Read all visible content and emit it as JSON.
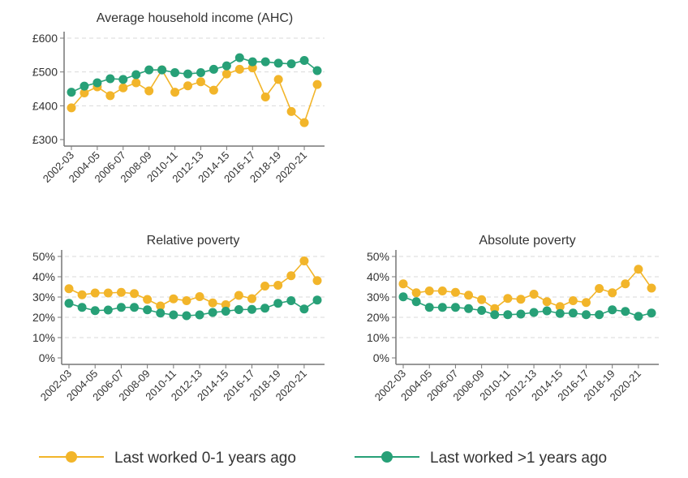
{
  "colors": {
    "recent": "#F2B52A",
    "older": "#27A077",
    "grid": "#d9d9d9",
    "axis": "#777777"
  },
  "legend": [
    {
      "label": "Last worked 0-1 years ago",
      "color_key": "recent"
    },
    {
      "label": "Last worked >1 years ago",
      "color_key": "older"
    }
  ],
  "chart_data": [
    {
      "type": "line",
      "title": "Average household income (AHC)",
      "x": [
        "2002-03",
        "2003-04",
        "2004-05",
        "2005-06",
        "2006-07",
        "2007-08",
        "2008-09",
        "2009-10",
        "2010-11",
        "2011-12",
        "2012-13",
        "2013-14",
        "2014-15",
        "2015-16",
        "2016-17",
        "2017-18",
        "2018-19",
        "2019-20",
        "2020-21",
        "2021-22"
      ],
      "x_tick_labels": [
        "2002-03",
        "2004-05",
        "2006-07",
        "2008-09",
        "2010-11",
        "2012-13",
        "2014-15",
        "2016-17",
        "2018-19",
        "2020-21"
      ],
      "ylim": [
        300,
        600
      ],
      "y_ticks": [
        300,
        400,
        500,
        600
      ],
      "y_tick_labels": [
        "£300",
        "£400",
        "£500",
        "£600"
      ],
      "grid": true,
      "series": [
        {
          "name": "Last worked 0-1 years ago",
          "color_key": "recent",
          "values": [
            394,
            438,
            456,
            430,
            453,
            468,
            444,
            506,
            440,
            459,
            471,
            446,
            494,
            508,
            512,
            426,
            478,
            383,
            350,
            463
          ]
        },
        {
          "name": "Last worked >1 years ago",
          "color_key": "older",
          "values": [
            440,
            458,
            468,
            480,
            478,
            492,
            506,
            506,
            498,
            494,
            498,
            508,
            518,
            542,
            530,
            530,
            526,
            524,
            534,
            504
          ]
        }
      ]
    },
    {
      "type": "line",
      "title": "Relative poverty",
      "x": [
        "2002-03",
        "2003-04",
        "2004-05",
        "2005-06",
        "2006-07",
        "2007-08",
        "2008-09",
        "2009-10",
        "2010-11",
        "2011-12",
        "2012-13",
        "2013-14",
        "2014-15",
        "2015-16",
        "2016-17",
        "2017-18",
        "2018-19",
        "2019-20",
        "2020-21",
        "2021-22"
      ],
      "x_tick_labels": [
        "2002-03",
        "2004-05",
        "2006-07",
        "2008-09",
        "2010-11",
        "2012-13",
        "2014-15",
        "2016-17",
        "2018-19",
        "2020-21"
      ],
      "ylim": [
        0,
        50
      ],
      "y_ticks": [
        0,
        10,
        20,
        30,
        40,
        50
      ],
      "y_tick_labels": [
        "0%",
        "10%",
        "20%",
        "30%",
        "40%",
        "50%"
      ],
      "grid": true,
      "series": [
        {
          "name": "Last worked 0-1 years ago",
          "color_key": "recent",
          "values": [
            34.1,
            31.1,
            32.0,
            32.0,
            32.3,
            31.7,
            28.8,
            25.6,
            29.1,
            28.2,
            30.2,
            27.1,
            26.2,
            30.8,
            29.2,
            35.4,
            35.8,
            40.5,
            47.8,
            38.1
          ]
        },
        {
          "name": "Last worked >1 years ago",
          "color_key": "older",
          "values": [
            26.9,
            24.9,
            23.3,
            23.6,
            24.9,
            24.9,
            23.7,
            22.1,
            21.2,
            20.8,
            21.2,
            22.4,
            23.0,
            23.8,
            23.9,
            24.5,
            26.9,
            28.2,
            24.1,
            28.5
          ]
        }
      ]
    },
    {
      "type": "line",
      "title": "Absolute poverty",
      "x": [
        "2002-03",
        "2003-04",
        "2004-05",
        "2005-06",
        "2006-07",
        "2007-08",
        "2008-09",
        "2009-10",
        "2010-11",
        "2011-12",
        "2012-13",
        "2013-14",
        "2014-15",
        "2015-16",
        "2016-17",
        "2017-18",
        "2018-19",
        "2019-20",
        "2020-21",
        "2021-22"
      ],
      "x_tick_labels": [
        "2002-03",
        "2004-05",
        "2006-07",
        "2008-09",
        "2010-11",
        "2012-13",
        "2014-15",
        "2016-17",
        "2018-19",
        "2020-21"
      ],
      "ylim": [
        0,
        50
      ],
      "y_ticks": [
        0,
        10,
        20,
        30,
        40,
        50
      ],
      "y_tick_labels": [
        "0%",
        "10%",
        "20%",
        "30%",
        "40%",
        "50%"
      ],
      "grid": true,
      "series": [
        {
          "name": "Last worked 0-1 years ago",
          "color_key": "recent",
          "values": [
            36.5,
            32.1,
            33.0,
            33.0,
            32.3,
            30.9,
            28.7,
            24.3,
            29.3,
            28.9,
            31.4,
            27.7,
            25.3,
            28.2,
            27.3,
            34.2,
            32.1,
            36.5,
            43.7,
            34.4
          ]
        },
        {
          "name": "Last worked >1 years ago",
          "color_key": "older",
          "values": [
            30.1,
            27.7,
            24.9,
            24.9,
            24.9,
            24.3,
            23.4,
            21.3,
            21.3,
            21.6,
            22.4,
            23.2,
            21.9,
            22.1,
            21.3,
            21.3,
            23.7,
            22.9,
            20.5,
            22.1
          ]
        }
      ]
    }
  ]
}
